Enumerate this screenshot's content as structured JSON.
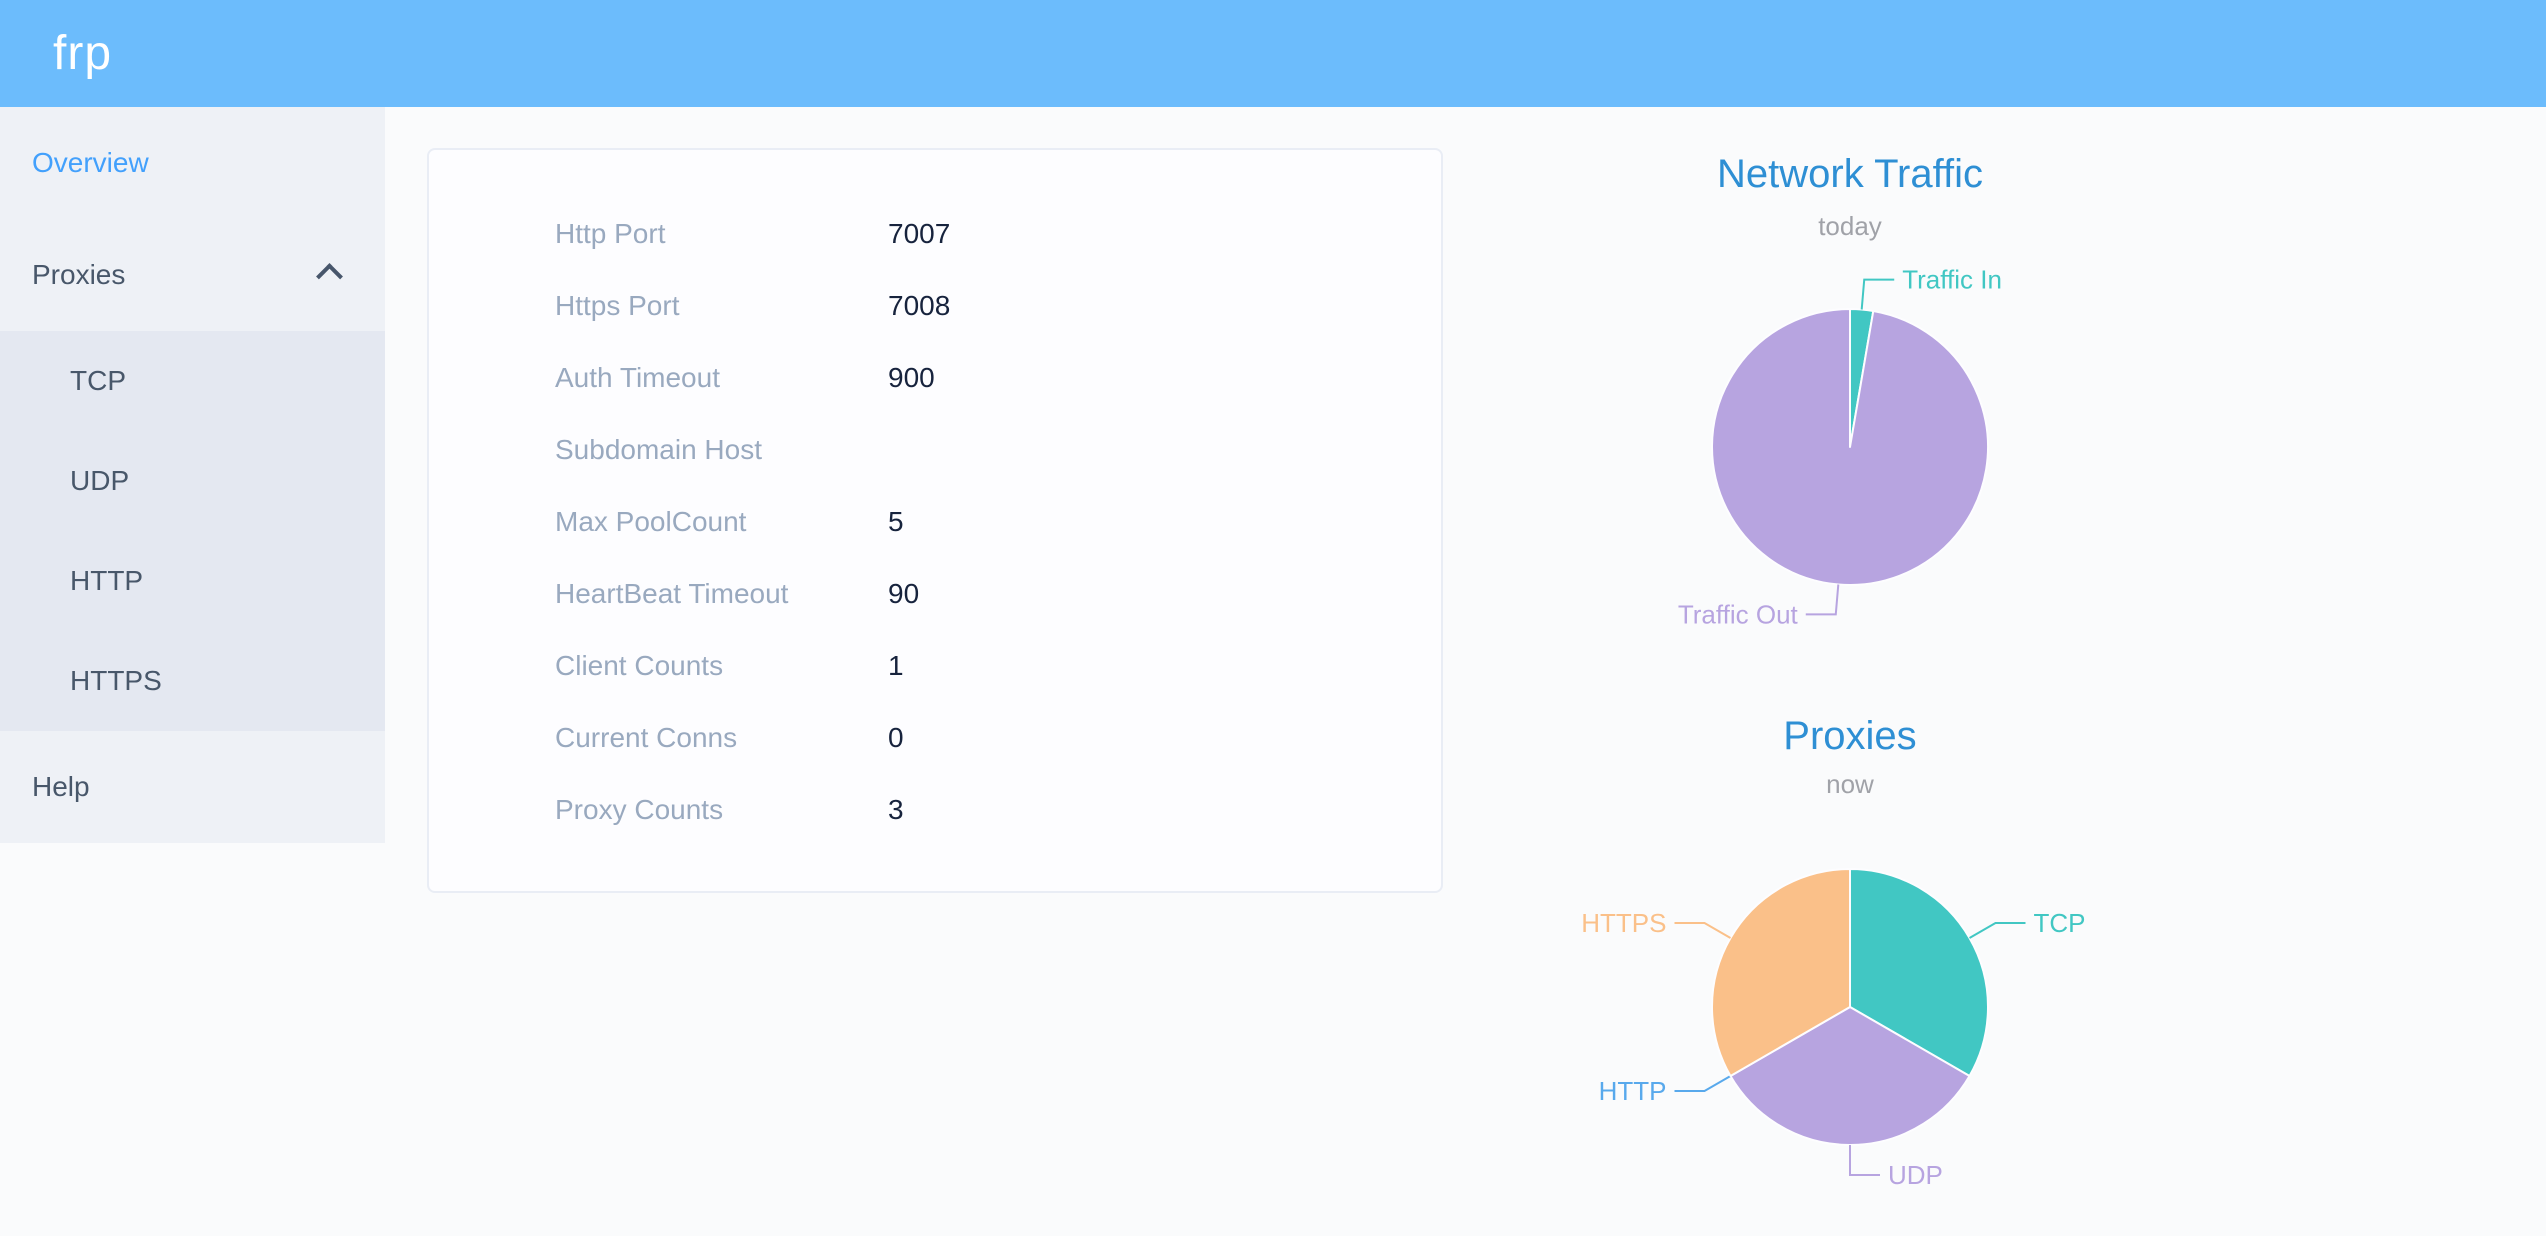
{
  "app": {
    "logo": "frp"
  },
  "header": {
    "bg": "#6cbcfc"
  },
  "sidebar": {
    "items": [
      {
        "label": "Overview",
        "active": true
      },
      {
        "label": "Proxies",
        "expanded": true,
        "children": [
          {
            "label": "TCP"
          },
          {
            "label": "UDP"
          },
          {
            "label": "HTTP"
          },
          {
            "label": "HTTPS"
          }
        ]
      },
      {
        "label": "Help"
      }
    ]
  },
  "config_card": {
    "rows": [
      {
        "label": "Http Port",
        "value": "7007"
      },
      {
        "label": "Https Port",
        "value": "7008"
      },
      {
        "label": "Auth Timeout",
        "value": "900"
      },
      {
        "label": "Subdomain Host",
        "value": ""
      },
      {
        "label": "Max PoolCount",
        "value": "5"
      },
      {
        "label": "HeartBeat Timeout",
        "value": "90"
      },
      {
        "label": "Client Counts",
        "value": "1"
      },
      {
        "label": "Current Conns",
        "value": "0"
      },
      {
        "label": "Proxy Counts",
        "value": "3"
      }
    ]
  },
  "chart_data": [
    {
      "type": "pie",
      "title": "Network Traffic",
      "subtitle": "today",
      "labels": [
        "Traffic In",
        "Traffic Out"
      ],
      "values_percent": [
        2.7,
        97.3
      ],
      "colors": [
        "#41c7c3",
        "#b7a4e0"
      ],
      "legend_position": "callout-labels"
    },
    {
      "type": "pie",
      "title": "Proxies",
      "subtitle": "now",
      "labels": [
        "TCP",
        "UDP",
        "HTTP",
        "HTTPS"
      ],
      "values": [
        1,
        1,
        0,
        1
      ],
      "colors": [
        "#41c7c3",
        "#b7a4e0",
        "#58a9ec",
        "#fac089"
      ],
      "legend_position": "callout-labels"
    }
  ],
  "colors": {
    "header_bg": "#6cbcfc",
    "active_menu_link": "#42a0fc",
    "menu_text": "#48576a",
    "sidebar_bg": "#eef1f6",
    "submenu_bg": "#e4e8f1",
    "chart_title_blue": "#2e8fd4",
    "config_label_gray": "#99a9bf",
    "config_value_dark": "#17233d"
  }
}
